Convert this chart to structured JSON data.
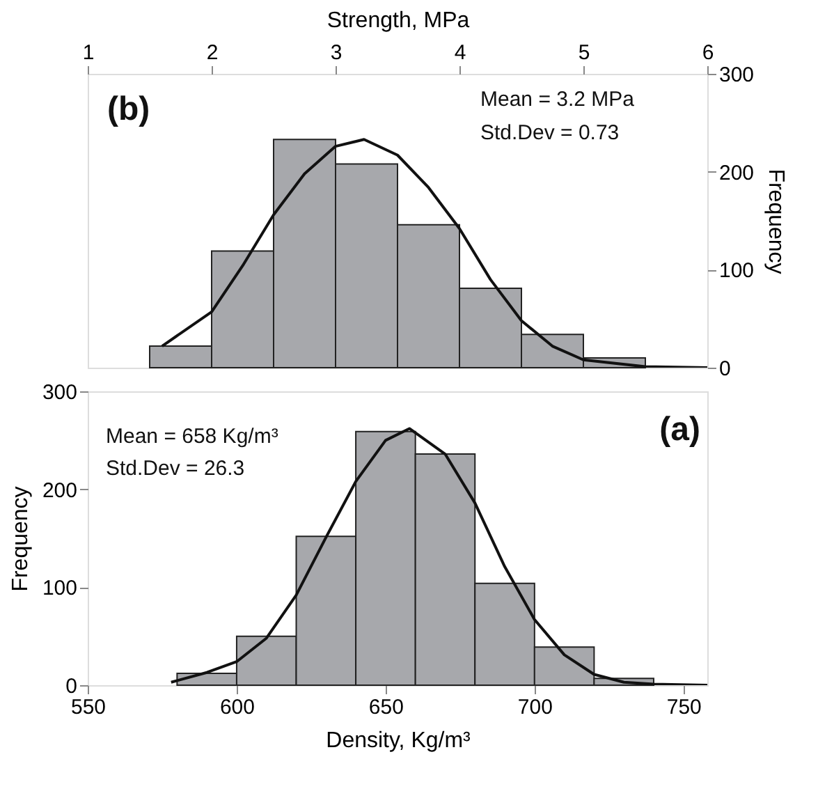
{
  "chart_data": [
    {
      "type": "histogram",
      "xlabel": "Strength, MPa",
      "xlim": [
        1,
        6
      ],
      "xticks": [
        1,
        2,
        3,
        4,
        5,
        6
      ],
      "ylabel": "Frequency",
      "ylim": [
        0,
        300
      ],
      "yticks": [
        0,
        100,
        200,
        300
      ],
      "grid": false,
      "legend": false,
      "annotations": [
        "(b)",
        "Mean = 3.2 MPa",
        "Std.Dev = 0.73"
      ],
      "series": [
        {
          "color": "#a7a8ac",
          "bins": [
            1.5,
            2,
            2.5,
            3,
            3.5,
            4,
            4.5,
            5,
            5.5
          ],
          "values": [
            22,
            119,
            233,
            208,
            146,
            81,
            34,
            10
          ]
        },
        {
          "type": "line",
          "color": "#111111",
          "x": [
            1.6,
            2.0,
            2.25,
            2.5,
            2.75,
            3.0,
            3.23,
            3.5,
            3.75,
            4.0,
            4.25,
            4.5,
            4.75,
            5.0,
            5.5,
            6.0
          ],
          "values": [
            22,
            57,
            104,
            156,
            198,
            226,
            233,
            217,
            184,
            142,
            90,
            48,
            22,
            8,
            1,
            0
          ]
        }
      ]
    },
    {
      "type": "histogram",
      "xlabel": "Density, Kg/m³",
      "xlim": [
        550,
        758
      ],
      "xticks": [
        550,
        600,
        650,
        700,
        750
      ],
      "ylabel": "Frequency",
      "ylim": [
        0,
        300
      ],
      "yticks": [
        0,
        100,
        200,
        300
      ],
      "grid": false,
      "legend": false,
      "annotations": [
        "Mean = 658 Kg/m³",
        "Std.Dev = 26.3",
        "(a)"
      ],
      "series": [
        {
          "color": "#a7a8ac",
          "bins": [
            580,
            600,
            620,
            640,
            660,
            680,
            700,
            720,
            740
          ],
          "values": [
            12,
            50,
            152,
            259,
            236,
            104,
            39,
            7
          ]
        },
        {
          "type": "line",
          "color": "#111111",
          "x": [
            578,
            590,
            600,
            610,
            620,
            630,
            640,
            650,
            658,
            670,
            680,
            690,
            700,
            710,
            720,
            730,
            740,
            758
          ],
          "values": [
            3,
            13,
            24,
            48,
            92,
            151,
            208,
            250,
            262,
            236,
            186,
            121,
            67,
            31,
            11,
            3,
            1,
            0
          ]
        }
      ]
    }
  ]
}
